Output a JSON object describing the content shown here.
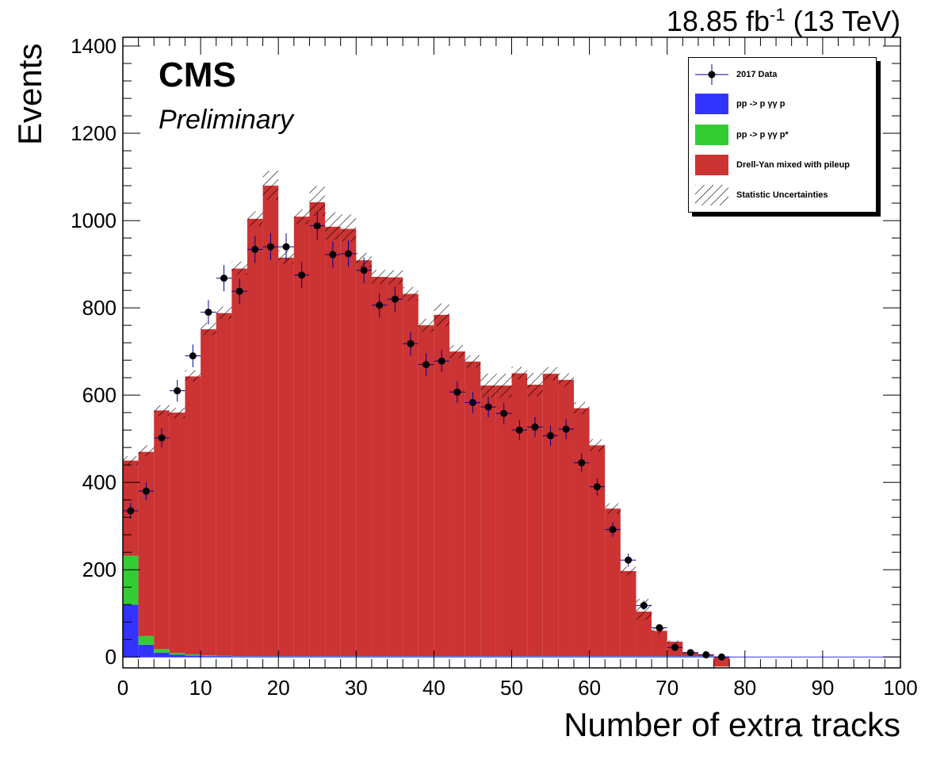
{
  "header": {
    "lumi_value": "18.85 fb",
    "lumi_exp": "-1",
    "lumi_energy": "(13 TeV)"
  },
  "labels": {
    "cms": "CMS",
    "preliminary": "Preliminary"
  },
  "colors": {
    "pp_gg_p": "#3333ff",
    "pp_gg_pstar": "#33cc33",
    "drell_yan": "#cc3333",
    "data_marker": "#000000",
    "data_errorbar": "#000099"
  },
  "chart_data": {
    "type": "bar",
    "stacked": true,
    "xlabel": "Number of extra tracks",
    "ylabel": "Events",
    "xlim": [
      0,
      100
    ],
    "ylim": [
      -25,
      1420
    ],
    "x_ticks": [
      0,
      10,
      20,
      30,
      40,
      50,
      60,
      70,
      80,
      90,
      100
    ],
    "y_ticks": [
      0,
      200,
      400,
      600,
      800,
      1000,
      1200,
      1400
    ],
    "bin_width": 2,
    "bin_edges_start": [
      0,
      2,
      4,
      6,
      8,
      10,
      12,
      14,
      16,
      18,
      20,
      22,
      24,
      26,
      28,
      30,
      32,
      34,
      36,
      38,
      40,
      42,
      44,
      46,
      48,
      50,
      52,
      54,
      56,
      58,
      60,
      62,
      64,
      66,
      68,
      70,
      72,
      74,
      76,
      78,
      80,
      82,
      84,
      86,
      88,
      90,
      92,
      94,
      96,
      98
    ],
    "series": [
      {
        "name": "pp -> p  γγ p",
        "values": [
          120,
          28,
          10,
          5,
          3,
          2,
          2,
          1,
          1,
          1,
          1,
          1,
          1,
          1,
          1,
          1,
          1,
          1,
          1,
          1,
          1,
          1,
          1,
          1,
          1,
          1,
          1,
          1,
          1,
          1,
          1,
          1,
          1,
          1,
          1,
          1,
          1,
          1,
          0,
          0,
          0,
          0,
          0,
          0,
          0,
          0,
          0,
          0,
          0,
          0
        ]
      },
      {
        "name": "pp -> p  γγ p*",
        "values": [
          112,
          20,
          8,
          4,
          3,
          2,
          1,
          1,
          1,
          1,
          1,
          1,
          1,
          1,
          1,
          1,
          1,
          1,
          1,
          1,
          1,
          1,
          1,
          1,
          1,
          1,
          1,
          1,
          1,
          1,
          1,
          1,
          1,
          1,
          1,
          1,
          1,
          1,
          0,
          0,
          0,
          0,
          0,
          0,
          0,
          0,
          0,
          0,
          0,
          0
        ]
      },
      {
        "name": "Drell-Yan mixed with pileup",
        "values": [
          218,
          422,
          547,
          551,
          637,
          747,
          785,
          888,
          1002,
          1078,
          913,
          1007,
          1040,
          984,
          979,
          907,
          869,
          868,
          830,
          758,
          782,
          698,
          675,
          620,
          620,
          648,
          622,
          647,
          633,
          568,
          483,
          338,
          195,
          102,
          58,
          33,
          8,
          2,
          -22,
          0,
          0,
          0,
          0,
          0,
          0,
          0,
          0,
          0,
          0,
          0
        ]
      }
    ],
    "stat_uncertainty": [
      {
        "x": 1,
        "up": 460,
        "down": 440
      },
      {
        "x": 3,
        "up": 485,
        "down": 461
      },
      {
        "x": 5,
        "up": 577,
        "down": 553
      },
      {
        "x": 7,
        "up": 571,
        "down": 547
      },
      {
        "x": 9,
        "up": 657,
        "down": 631
      },
      {
        "x": 11,
        "up": 766,
        "down": 738
      },
      {
        "x": 13,
        "up": 803,
        "down": 775
      },
      {
        "x": 15,
        "up": 906,
        "down": 876
      },
      {
        "x": 17,
        "up": 1021,
        "down": 987
      },
      {
        "x": 19,
        "up": 1114,
        "down": 1048
      },
      {
        "x": 21,
        "up": 932,
        "down": 900
      },
      {
        "x": 23,
        "up": 1026,
        "down": 992
      },
      {
        "x": 25,
        "up": 1079,
        "down": 1011
      },
      {
        "x": 27,
        "up": 1019,
        "down": 957
      },
      {
        "x": 29,
        "up": 1014,
        "down": 952
      },
      {
        "x": 31,
        "up": 926,
        "down": 892
      },
      {
        "x": 33,
        "up": 887,
        "down": 855
      },
      {
        "x": 35,
        "up": 886,
        "down": 854
      },
      {
        "x": 37,
        "up": 848,
        "down": 816
      },
      {
        "x": 39,
        "up": 775,
        "down": 745
      },
      {
        "x": 41,
        "up": 810,
        "down": 758
      },
      {
        "x": 43,
        "up": 715,
        "down": 685
      },
      {
        "x": 45,
        "up": 691,
        "down": 663
      },
      {
        "x": 47,
        "up": 649,
        "down": 595
      },
      {
        "x": 49,
        "up": 649,
        "down": 595
      },
      {
        "x": 51,
        "up": 665,
        "down": 635
      },
      {
        "x": 53,
        "up": 651,
        "down": 597
      },
      {
        "x": 55,
        "up": 664,
        "down": 634
      },
      {
        "x": 57,
        "up": 650,
        "down": 620
      },
      {
        "x": 59,
        "up": 584,
        "down": 556
      },
      {
        "x": 61,
        "up": 499,
        "down": 471
      },
      {
        "x": 63,
        "up": 352,
        "down": 328
      },
      {
        "x": 65,
        "up": 207,
        "down": 187
      },
      {
        "x": 67,
        "up": 133,
        "down": 85
      },
      {
        "x": 69,
        "up": 67,
        "down": 53
      },
      {
        "x": 71,
        "up": 38,
        "down": 30
      },
      {
        "x": 73,
        "up": 12,
        "down": 6
      }
    ],
    "data_points": {
      "name": "2017 Data",
      "x": [
        1,
        3,
        5,
        7,
        9,
        11,
        13,
        15,
        17,
        19,
        21,
        23,
        25,
        27,
        29,
        31,
        33,
        35,
        37,
        39,
        41,
        43,
        45,
        47,
        49,
        51,
        53,
        55,
        57,
        59,
        61,
        63,
        65,
        67,
        69,
        71,
        73,
        75,
        77
      ],
      "y": [
        335,
        380,
        502,
        610,
        690,
        790,
        868,
        838,
        934,
        940,
        940,
        875,
        988,
        922,
        924,
        886,
        806,
        820,
        718,
        670,
        678,
        607,
        583,
        573,
        558,
        520,
        527,
        507,
        522,
        445,
        390,
        292,
        222,
        118,
        67,
        22,
        10,
        5,
        0
      ],
      "err": [
        18,
        20,
        22,
        25,
        26,
        28,
        30,
        29,
        31,
        31,
        31,
        30,
        32,
        30,
        30,
        30,
        28,
        29,
        27,
        26,
        26,
        25,
        24,
        24,
        24,
        23,
        23,
        23,
        23,
        21,
        20,
        17,
        15,
        11,
        8,
        5,
        3,
        2,
        1
      ]
    },
    "legend": {
      "placement": "top-right",
      "entries": [
        "2017 Data",
        "pp -> p  γγ p",
        "pp -> p  γγ p*",
        "Drell-Yan mixed with pileup",
        "Statistic Uncertainties"
      ]
    }
  }
}
